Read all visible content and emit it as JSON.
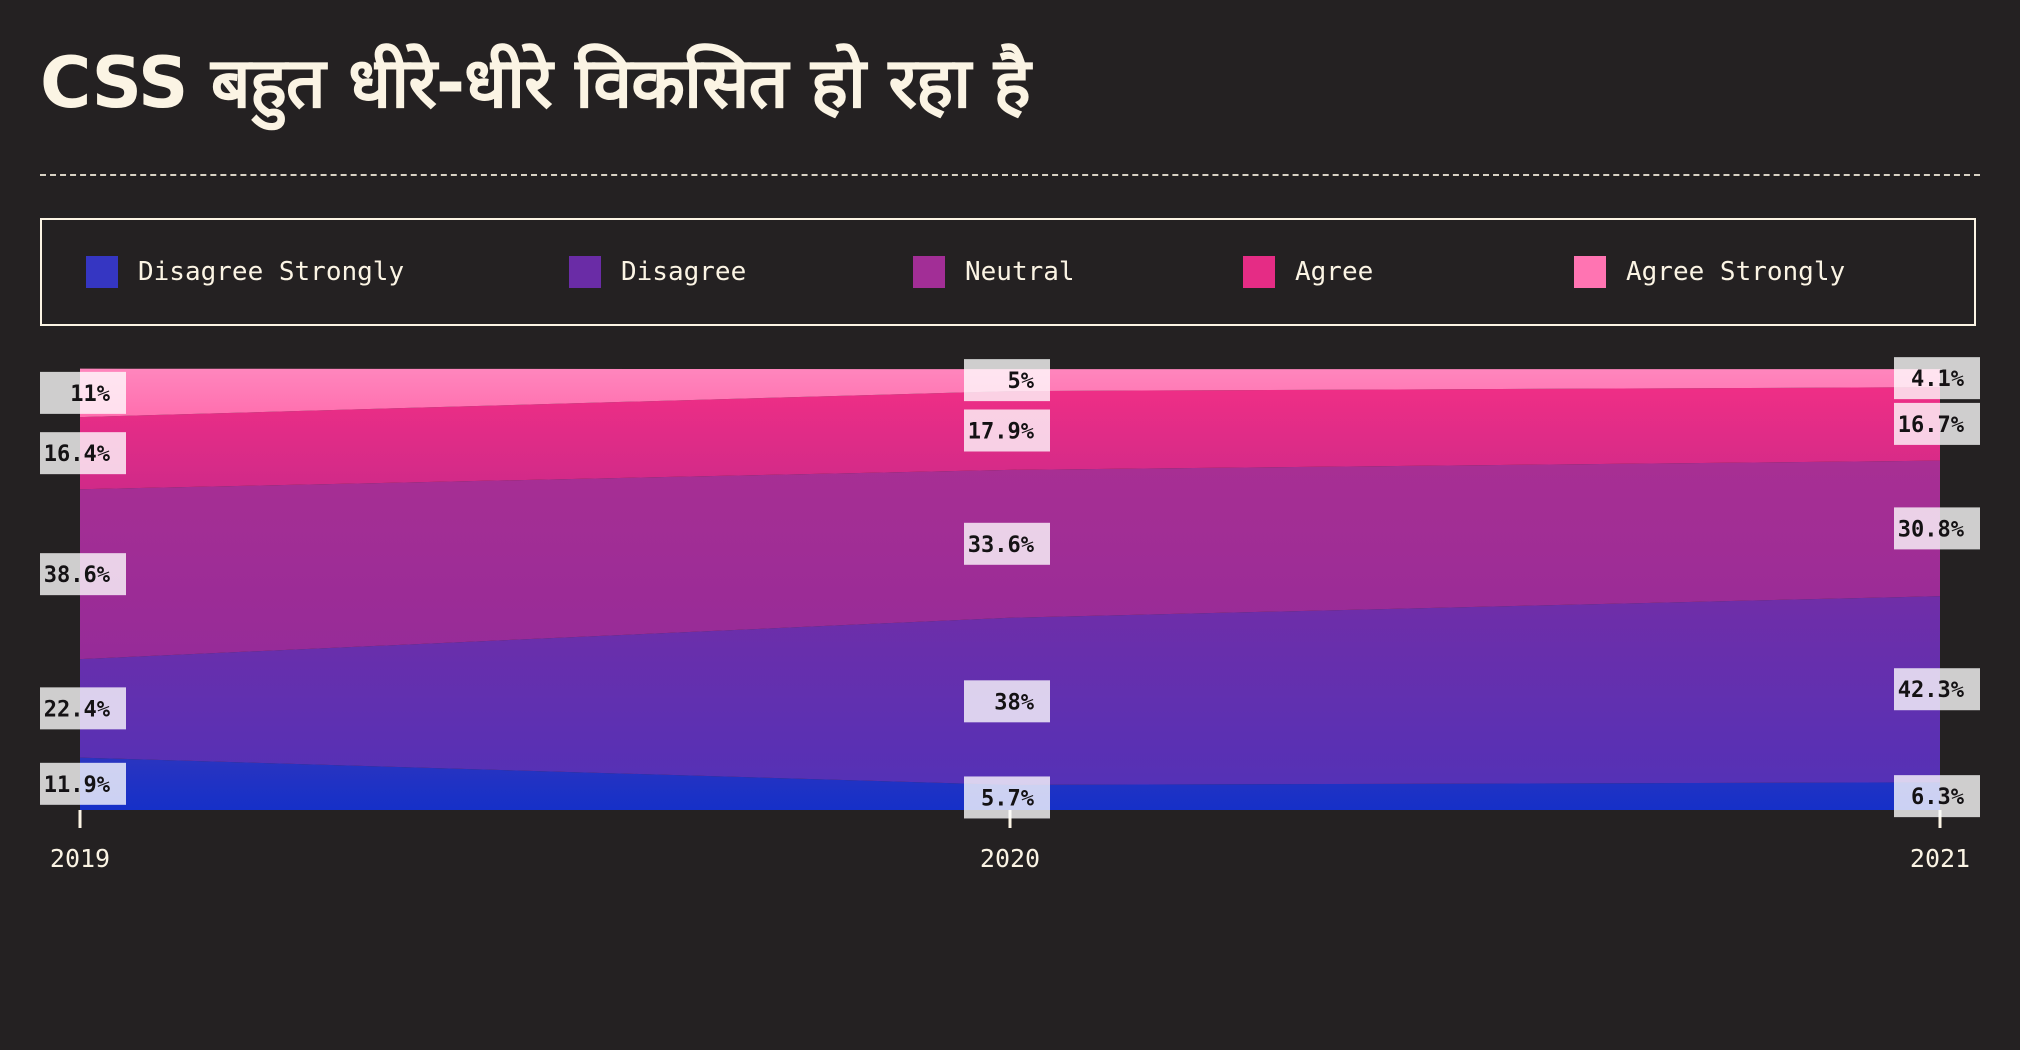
{
  "title": "CSS बहुत धीरे-धीरे विकसित हो रहा है",
  "legend": {
    "items": [
      {
        "label": "Disagree Strongly",
        "color": "#3536c2"
      },
      {
        "label": "Disagree",
        "color": "#6a2ca6"
      },
      {
        "label": "Neutral",
        "color": "#a22e96"
      },
      {
        "label": "Agree",
        "color": "#e52c85"
      },
      {
        "label": "Agree Strongly",
        "color": "#ff74b2"
      }
    ]
  },
  "chart_data": {
    "type": "area",
    "stacked": true,
    "normalized": true,
    "title": "CSS बहुत धीरे-धीरे विकसित हो रहा है",
    "xlabel": "",
    "ylabel": "",
    "x": [
      "2019",
      "2020",
      "2021"
    ],
    "ylim": [
      0,
      100
    ],
    "grid": false,
    "legend_position": "top",
    "series": [
      {
        "name": "Disagree Strongly",
        "values": [
          11.9,
          5.7,
          6.3
        ],
        "labels": [
          "11.9%",
          "5.7%",
          "6.3%"
        ],
        "color_bottom": "#1530c8",
        "color_top": "#2a34c0"
      },
      {
        "name": "Disagree",
        "values": [
          22.4,
          38,
          42.3
        ],
        "labels": [
          "22.4%",
          "38%",
          "42.3%"
        ],
        "color_bottom": "#5531b6",
        "color_top": "#702ea8"
      },
      {
        "name": "Neutral",
        "values": [
          38.6,
          33.6,
          30.8
        ],
        "labels": [
          "38.6%",
          "33.6%",
          "30.8%"
        ],
        "color_bottom": "#962b98",
        "color_top": "#a82f93"
      },
      {
        "name": "Agree",
        "values": [
          16.4,
          17.9,
          16.7
        ],
        "labels": [
          "16.4%",
          "17.9%",
          "16.7%"
        ],
        "color_bottom": "#d02a88",
        "color_top": "#ef2e86"
      },
      {
        "name": "Agree Strongly",
        "values": [
          11,
          5,
          4.1
        ],
        "labels": [
          "11%",
          "5%",
          "4.1%"
        ],
        "color_bottom": "#ff6eae",
        "color_top": "#ff86bd"
      }
    ]
  }
}
